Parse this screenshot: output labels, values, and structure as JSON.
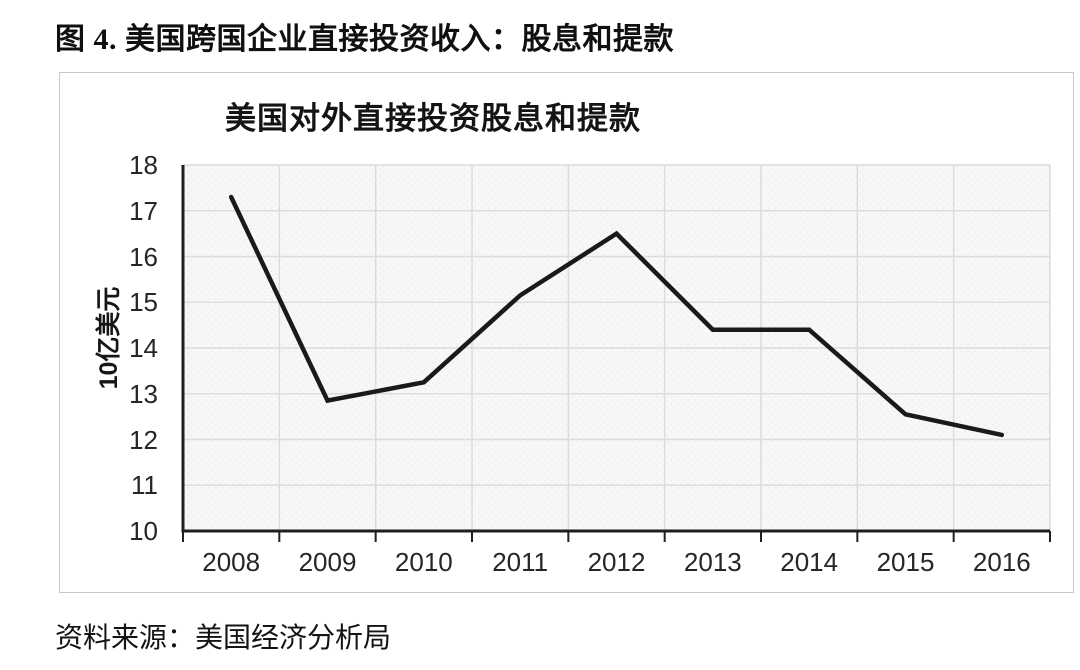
{
  "page": {
    "figure_caption": "图 4. 美国跨国企业直接投资收入：股息和提款",
    "source_note": "资料来源：美国经济分析局"
  },
  "chart_data": {
    "type": "line",
    "title": "美国对外直接投资股息和提款",
    "ylabel": "10亿美元",
    "xlabel": "",
    "categories": [
      "2008",
      "2009",
      "2010",
      "2011",
      "2012",
      "2013",
      "2014",
      "2015",
      "2016"
    ],
    "series": [
      {
        "name": "美国对外直接投资股息和提款",
        "values": [
          17.3,
          12.85,
          13.25,
          15.15,
          16.5,
          14.4,
          14.4,
          12.55,
          12.1
        ]
      }
    ],
    "ylim": [
      10,
      18
    ],
    "ytick_step": 1,
    "grid": true,
    "legend_position": "none",
    "colors": {
      "line": "#1a1a1a",
      "axis": "#1f1f1f",
      "gridline": "#dcdcdc",
      "plot_background": "#f7f7f6",
      "panel_border": "#c9c9c9"
    }
  }
}
